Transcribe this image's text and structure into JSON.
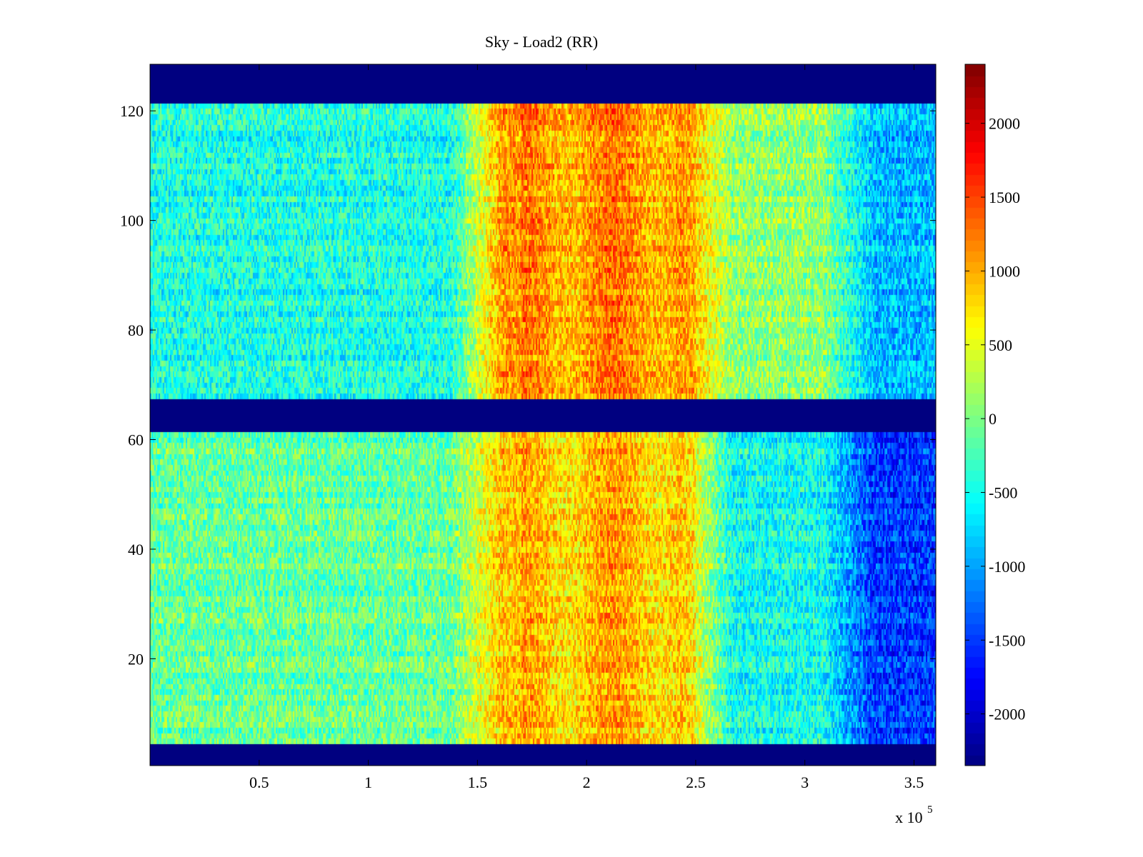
{
  "chart_data": {
    "type": "heatmap",
    "title": "Sky - Load2 (RR)",
    "xlabel": "",
    "ylabel": "",
    "x_range": [
      0,
      360000
    ],
    "y_range": [
      1,
      128
    ],
    "x_ticks": [
      50000,
      100000,
      150000,
      200000,
      250000,
      300000,
      350000
    ],
    "x_tick_labels": [
      "0.5",
      "1",
      "1.5",
      "2",
      "2.5",
      "3",
      "3.5"
    ],
    "x_exponent_label": {
      "base": "x 10",
      "exponent": "5"
    },
    "y_ticks": [
      20,
      40,
      60,
      80,
      100,
      120
    ],
    "y_tick_labels": [
      "20",
      "40",
      "60",
      "80",
      "100",
      "120"
    ],
    "colormap": "jet",
    "clim": [
      -2350,
      2400
    ],
    "colorbar_ticks": [
      2000,
      1500,
      1000,
      500,
      0,
      -500,
      -1000,
      -1500,
      -2000
    ],
    "colorbar_tick_labels": [
      "2000",
      "1500",
      "1000",
      "500",
      "0",
      "-500",
      "-1000",
      "-1500",
      "-2000"
    ],
    "masked_rows": [
      [
        1,
        4
      ],
      [
        62,
        67
      ],
      [
        122,
        128
      ]
    ],
    "masked_value": -2350,
    "intensity_regions": [
      {
        "channels": [
          68,
          121
        ],
        "x": [
          0,
          150000
        ],
        "level": -450
      },
      {
        "channels": [
          68,
          121
        ],
        "x": [
          150000,
          255000
        ],
        "level": 1100
      },
      {
        "channels": [
          68,
          121
        ],
        "x": [
          255000,
          320000
        ],
        "level": 100
      },
      {
        "channels": [
          68,
          121
        ],
        "x": [
          320000,
          360000
        ],
        "level": -900
      },
      {
        "channels": [
          5,
          61
        ],
        "x": [
          0,
          150000
        ],
        "level": -100
      },
      {
        "channels": [
          5,
          61
        ],
        "x": [
          150000,
          255000
        ],
        "level": 900
      },
      {
        "channels": [
          5,
          61
        ],
        "x": [
          255000,
          320000
        ],
        "level": -500
      },
      {
        "channels": [
          5,
          61
        ],
        "x": [
          320000,
          360000
        ],
        "level": -1500
      }
    ],
    "grid": false,
    "colorbar": "right"
  }
}
